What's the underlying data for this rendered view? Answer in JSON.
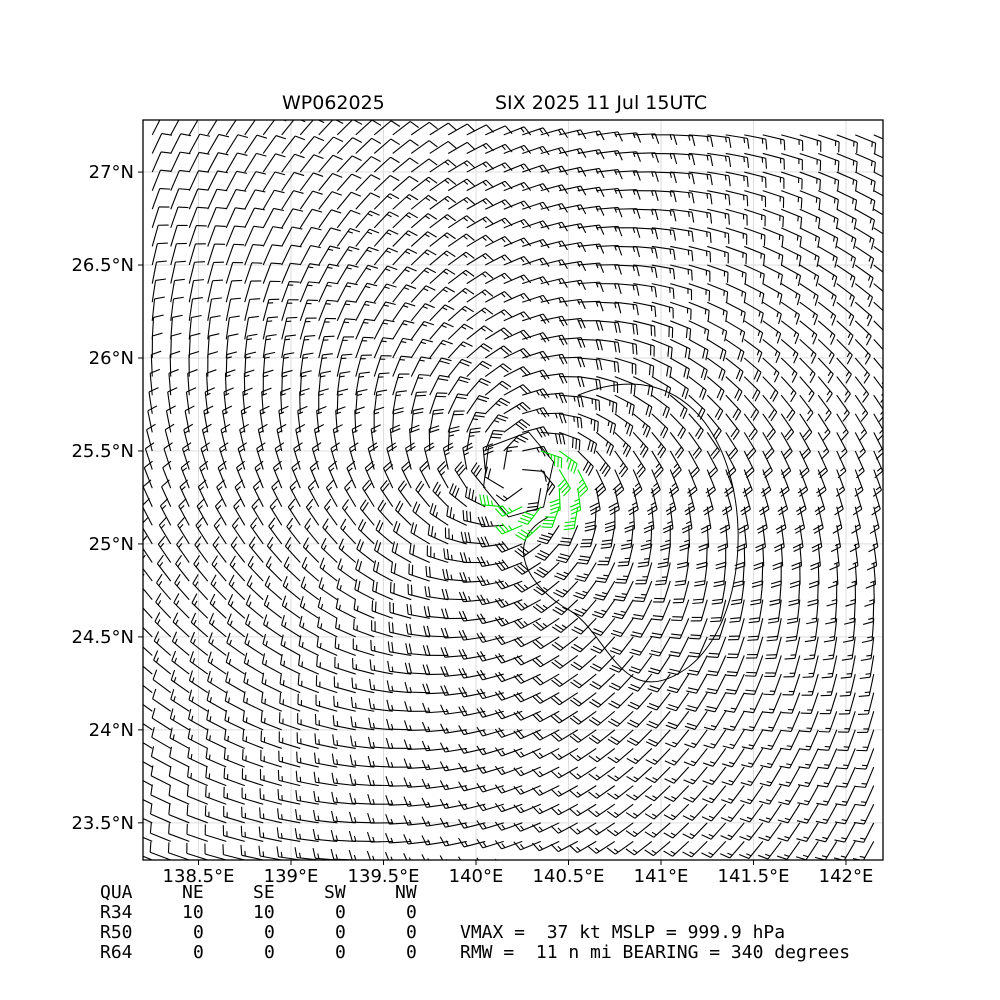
{
  "header": {
    "storm_id": "WP062025",
    "storm_time": "SIX 2025 11 Jul 15UTC"
  },
  "chart_data": {
    "type": "wind_barbs",
    "xlim": [
      138.2,
      142.2
    ],
    "ylim": [
      23.3,
      27.28
    ],
    "x_ticks": [
      138.5,
      139.0,
      139.5,
      140.0,
      140.5,
      141.0,
      141.5,
      142.0
    ],
    "x_tick_labels": [
      "138.5°E",
      "139°E",
      "139.5°E",
      "140°E",
      "140.5°E",
      "141°E",
      "141.5°E",
      "142°E"
    ],
    "y_ticks": [
      23.5,
      24.0,
      24.5,
      25.0,
      25.5,
      26.0,
      26.5,
      27.0
    ],
    "y_tick_labels": [
      "23.5°N",
      "24°N",
      "24.5°N",
      "25°N",
      "25.5°N",
      "26°N",
      "26.5°N",
      "27°N"
    ],
    "grid": true,
    "center": {
      "lon": 140.23,
      "lat": 25.36
    },
    "vmax_kt": 37,
    "rmw_nmi": 11,
    "gale_threshold_kt": 34,
    "colors": {
      "barb": "#000000",
      "gale_barb": "#00e000",
      "grid": "#dddddd"
    }
  },
  "table": {
    "header": [
      "QUA",
      "NE",
      "SE",
      "SW",
      "NW"
    ],
    "rows": [
      {
        "label": "R34",
        "values": [
          "10",
          "10",
          "0",
          "0"
        ]
      },
      {
        "label": "R50",
        "values": [
          "0",
          "0",
          "0",
          "0"
        ]
      },
      {
        "label": "R64",
        "values": [
          "0",
          "0",
          "0",
          "0"
        ]
      }
    ]
  },
  "info": {
    "line1": "VMAX =  37 kt MSLP = 999.9 hPa",
    "line2": "RMW =  11 n mi BEARING = 340 degrees"
  }
}
